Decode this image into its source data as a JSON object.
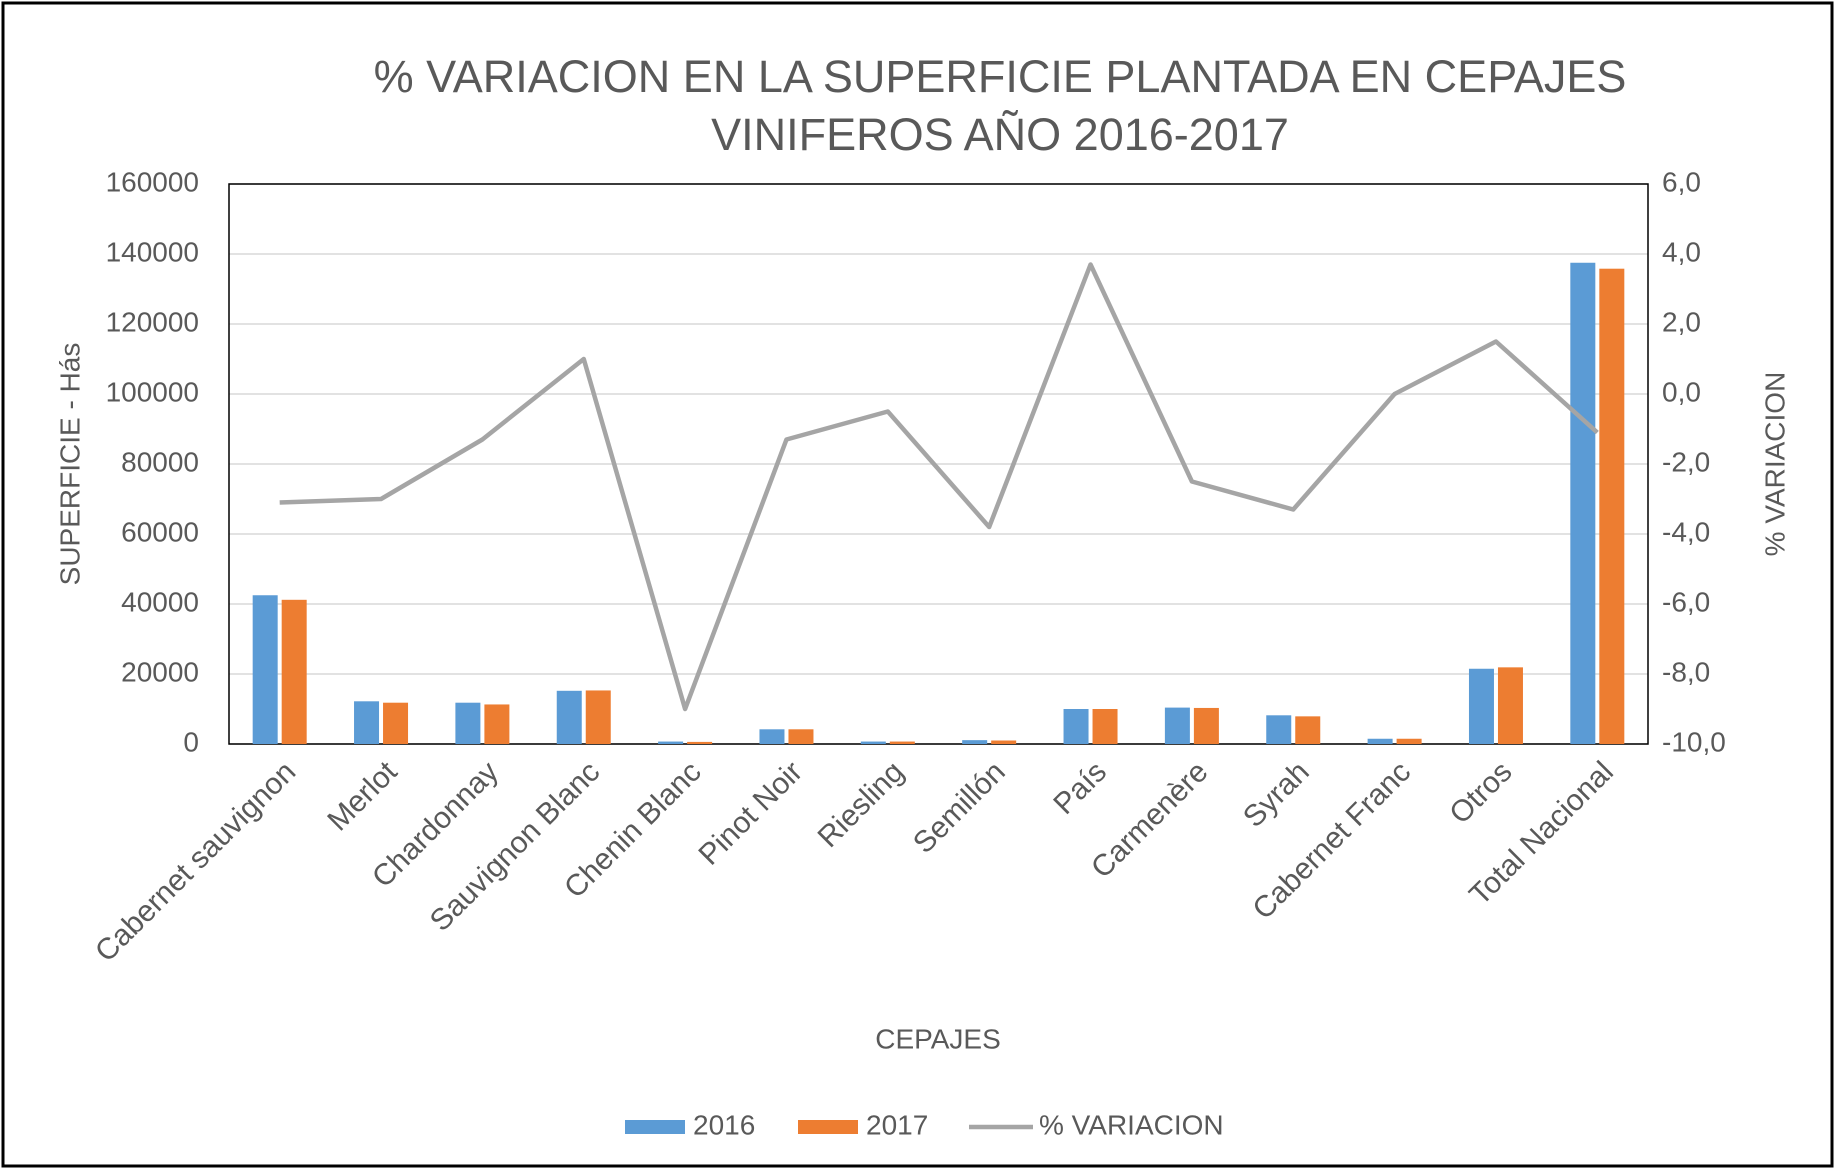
{
  "chart_data": {
    "type": "bar",
    "title": [
      "% VARIACION EN LA SUPERFICIE PLANTADA EN CEPAJES",
      "VINIFEROS AÑO 2016-2017"
    ],
    "xlabel": "CEPAJES",
    "ylabel": "SUPERFICIE - Hás",
    "y2label": "%  VARIACION",
    "categories": [
      "Cabernet  sauvignon",
      "Merlot",
      "Chardonnay",
      "Sauvignon Blanc",
      "Chenin Blanc",
      "Pinot Noir",
      "Riesling",
      "Semillón",
      "País",
      "Carmenère",
      "Syrah",
      "Cabernet Franc",
      "Otros",
      "Total Nacional"
    ],
    "series": [
      {
        "name": "2016",
        "type": "bar",
        "color": "#5b9bd5",
        "values": [
          42500,
          12200,
          11800,
          15200,
          700,
          4200,
          700,
          1100,
          10000,
          10400,
          8200,
          1500,
          21500,
          137500
        ]
      },
      {
        "name": "2017",
        "type": "bar",
        "color": "#ed7d31",
        "values": [
          41200,
          11800,
          11300,
          15300,
          600,
          4200,
          700,
          1000,
          10000,
          10300,
          7900,
          1500,
          21900,
          135800
        ]
      },
      {
        "name": "% VARIACION",
        "type": "line",
        "axis": "y2",
        "color": "#a5a5a5",
        "values": [
          -3.1,
          -3.0,
          -1.3,
          1.0,
          -9.0,
          -1.3,
          -0.5,
          -3.8,
          3.7,
          -2.5,
          -3.3,
          0.0,
          1.5,
          -1.1
        ]
      }
    ],
    "ylim": [
      0,
      160000
    ],
    "yticks": [
      0,
      20000,
      40000,
      60000,
      80000,
      100000,
      120000,
      140000,
      160000
    ],
    "y2lim": [
      -10,
      6
    ],
    "y2ticks": [
      {
        "value": -10,
        "label": "-10,0"
      },
      {
        "value": -8,
        "label": "-8,0"
      },
      {
        "value": -6,
        "label": "-6,0"
      },
      {
        "value": -4,
        "label": "-4,0"
      },
      {
        "value": -2,
        "label": "-2,0"
      },
      {
        "value": 0,
        "label": "0,0"
      },
      {
        "value": 2,
        "label": "2,0"
      },
      {
        "value": 4,
        "label": "4,0"
      },
      {
        "value": 6,
        "label": "6,0"
      }
    ],
    "grid": true,
    "legend": "bottom"
  }
}
